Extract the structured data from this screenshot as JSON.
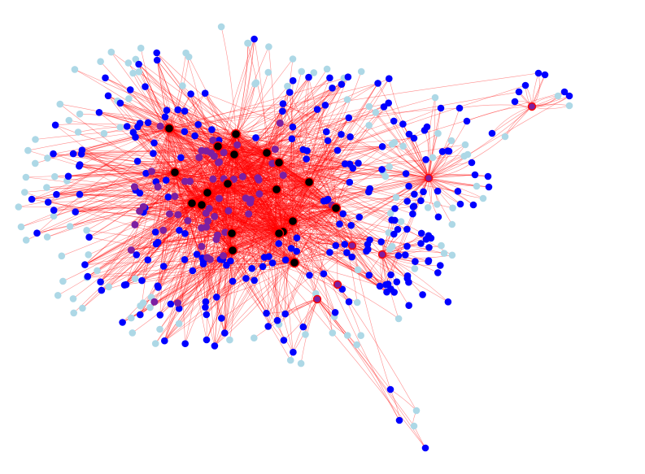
{
  "graph": {
    "directed": true,
    "colors": {
      "background": "#ffffff",
      "edge": "#ff0000",
      "tier_hub": "#000000",
      "tier_major": "#7b1fa2",
      "tier_minor": "#0000ff",
      "tier_leaf": "#add8e6"
    },
    "node_tiers": [
      "hub",
      "major",
      "minor",
      "leaf"
    ],
    "labels_shown": false
  }
}
